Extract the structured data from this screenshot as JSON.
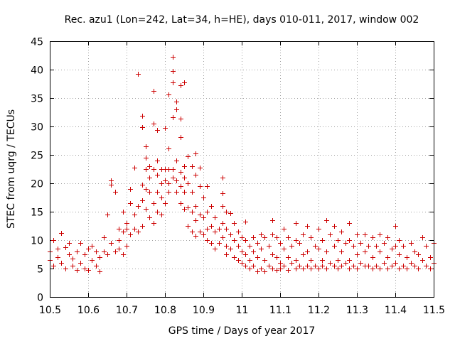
{
  "chart_data": {
    "type": "scatter",
    "title": "Rec. azu1 (Lon=242, Lat=34, h=HE), days 010-011, 2017, window 002",
    "xlabel": "GPS time / Days of year 2017",
    "ylabel": "STEC from uqrg / TECUs",
    "xlim": [
      10.5,
      11.5
    ],
    "ylim": [
      0,
      45
    ],
    "xticks": [
      "10.5",
      "10.6",
      "10.7",
      "10.8",
      "10.9",
      "11",
      "11.1",
      "11.2",
      "11.3",
      "11.4",
      "11.5"
    ],
    "yticks": [
      "0",
      "5",
      "10",
      "15",
      "20",
      "25",
      "30",
      "35",
      "40",
      "45"
    ],
    "marker": "+",
    "marker_color": "#cc0000",
    "grid": true,
    "series": [
      {
        "name": "STEC",
        "points": [
          [
            10.5,
            8.0
          ],
          [
            10.5,
            6.5
          ],
          [
            10.51,
            5.5
          ],
          [
            10.51,
            10.0
          ],
          [
            10.52,
            8.5
          ],
          [
            10.52,
            7.0
          ],
          [
            10.53,
            11.3
          ],
          [
            10.53,
            6.0
          ],
          [
            10.54,
            5.0
          ],
          [
            10.54,
            8.8
          ],
          [
            10.55,
            7.5
          ],
          [
            10.55,
            9.5
          ],
          [
            10.56,
            5.5
          ],
          [
            10.56,
            6.8
          ],
          [
            10.57,
            8.0
          ],
          [
            10.57,
            4.8
          ],
          [
            10.58,
            9.5
          ],
          [
            10.58,
            6.0
          ],
          [
            10.59,
            7.5
          ],
          [
            10.59,
            5.0
          ],
          [
            10.6,
            8.5
          ],
          [
            10.6,
            4.8
          ],
          [
            10.61,
            9.0
          ],
          [
            10.61,
            6.5
          ],
          [
            10.62,
            5.5
          ],
          [
            10.62,
            8.0
          ],
          [
            10.63,
            4.5
          ],
          [
            10.63,
            7.0
          ],
          [
            10.64,
            10.5
          ],
          [
            10.64,
            8.0
          ],
          [
            10.65,
            14.5
          ],
          [
            10.65,
            7.5
          ],
          [
            10.66,
            20.5
          ],
          [
            10.66,
            19.8
          ],
          [
            10.66,
            9.5
          ],
          [
            10.67,
            18.5
          ],
          [
            10.67,
            8.0
          ],
          [
            10.68,
            12.0
          ],
          [
            10.68,
            10.0
          ],
          [
            10.68,
            8.5
          ],
          [
            10.69,
            15.0
          ],
          [
            10.69,
            11.5
          ],
          [
            10.69,
            7.5
          ],
          [
            10.7,
            13.0
          ],
          [
            10.7,
            12.0
          ],
          [
            10.7,
            9.0
          ],
          [
            10.71,
            19.0
          ],
          [
            10.71,
            16.5
          ],
          [
            10.71,
            11.0
          ],
          [
            10.72,
            22.8
          ],
          [
            10.72,
            14.5
          ],
          [
            10.72,
            12.0
          ],
          [
            10.73,
            39.3
          ],
          [
            10.73,
            16.0
          ],
          [
            10.73,
            11.5
          ],
          [
            10.74,
            31.9
          ],
          [
            10.74,
            29.9
          ],
          [
            10.74,
            19.8
          ],
          [
            10.74,
            17.0
          ],
          [
            10.74,
            12.5
          ],
          [
            10.75,
            26.5
          ],
          [
            10.75,
            24.5
          ],
          [
            10.75,
            22.5
          ],
          [
            10.75,
            19.0
          ],
          [
            10.75,
            15.5
          ],
          [
            10.76,
            23.0
          ],
          [
            10.76,
            21.0
          ],
          [
            10.76,
            18.5
          ],
          [
            10.76,
            14.0
          ],
          [
            10.77,
            36.3
          ],
          [
            10.77,
            30.5
          ],
          [
            10.77,
            22.5
          ],
          [
            10.77,
            16.5
          ],
          [
            10.77,
            13.0
          ],
          [
            10.78,
            29.4
          ],
          [
            10.78,
            24.0
          ],
          [
            10.78,
            21.5
          ],
          [
            10.78,
            18.5
          ],
          [
            10.78,
            15.0
          ],
          [
            10.79,
            22.5
          ],
          [
            10.79,
            20.0
          ],
          [
            10.79,
            17.5
          ],
          [
            10.79,
            14.5
          ],
          [
            10.8,
            29.8
          ],
          [
            10.8,
            22.5
          ],
          [
            10.8,
            20.5
          ],
          [
            10.8,
            16.5
          ],
          [
            10.81,
            35.6
          ],
          [
            10.81,
            26.1
          ],
          [
            10.81,
            22.5
          ],
          [
            10.81,
            20.0
          ],
          [
            10.81,
            18.5
          ],
          [
            10.82,
            42.2
          ],
          [
            10.82,
            39.8
          ],
          [
            10.82,
            37.8
          ],
          [
            10.82,
            31.6
          ],
          [
            10.82,
            22.5
          ],
          [
            10.82,
            21.0
          ],
          [
            10.83,
            34.4
          ],
          [
            10.83,
            33.0
          ],
          [
            10.83,
            24.0
          ],
          [
            10.83,
            20.5
          ],
          [
            10.83,
            18.5
          ],
          [
            10.84,
            37.3
          ],
          [
            10.84,
            31.4
          ],
          [
            10.84,
            28.1
          ],
          [
            10.84,
            22.0
          ],
          [
            10.84,
            19.5
          ],
          [
            10.84,
            16.5
          ],
          [
            10.85,
            37.8
          ],
          [
            10.85,
            23.0
          ],
          [
            10.85,
            21.0
          ],
          [
            10.85,
            18.5
          ],
          [
            10.85,
            15.5
          ],
          [
            10.86,
            24.7
          ],
          [
            10.86,
            20.0
          ],
          [
            10.86,
            15.8
          ],
          [
            10.86,
            12.5
          ],
          [
            10.87,
            23.0
          ],
          [
            10.87,
            18.5
          ],
          [
            10.87,
            15.0
          ],
          [
            10.87,
            11.5
          ],
          [
            10.88,
            25.3
          ],
          [
            10.88,
            21.5
          ],
          [
            10.88,
            16.0
          ],
          [
            10.88,
            13.5
          ],
          [
            10.88,
            10.8
          ],
          [
            10.89,
            22.8
          ],
          [
            10.89,
            19.5
          ],
          [
            10.89,
            14.5
          ],
          [
            10.89,
            11.5
          ],
          [
            10.9,
            17.5
          ],
          [
            10.9,
            14.0
          ],
          [
            10.9,
            11.0
          ],
          [
            10.91,
            19.5
          ],
          [
            10.91,
            15.0
          ],
          [
            10.91,
            12.0
          ],
          [
            10.91,
            10.0
          ],
          [
            10.92,
            16.0
          ],
          [
            10.92,
            12.5
          ],
          [
            10.92,
            9.5
          ],
          [
            10.93,
            14.0
          ],
          [
            10.93,
            11.5
          ],
          [
            10.93,
            8.5
          ],
          [
            10.94,
            12.0
          ],
          [
            10.94,
            9.5
          ],
          [
            10.95,
            21.0
          ],
          [
            10.95,
            18.2
          ],
          [
            10.95,
            16.0
          ],
          [
            10.95,
            13.0
          ],
          [
            10.95,
            10.5
          ],
          [
            10.96,
            15.0
          ],
          [
            10.96,
            12.0
          ],
          [
            10.96,
            9.0
          ],
          [
            10.96,
            7.5
          ],
          [
            10.97,
            14.8
          ],
          [
            10.97,
            11.0
          ],
          [
            10.97,
            8.5
          ],
          [
            10.98,
            13.0
          ],
          [
            10.98,
            10.0
          ],
          [
            10.98,
            7.0
          ],
          [
            10.99,
            11.5
          ],
          [
            10.99,
            9.0
          ],
          [
            10.99,
            6.5
          ],
          [
            11.0,
            10.5
          ],
          [
            11.0,
            8.0
          ],
          [
            11.0,
            6.0
          ],
          [
            11.01,
            13.3
          ],
          [
            11.01,
            10.0
          ],
          [
            11.01,
            7.5
          ],
          [
            11.01,
            5.5
          ],
          [
            11.02,
            9.0
          ],
          [
            11.02,
            6.5
          ],
          [
            11.02,
            5.0
          ],
          [
            11.03,
            10.5
          ],
          [
            11.03,
            8.0
          ],
          [
            11.03,
            5.5
          ],
          [
            11.04,
            9.5
          ],
          [
            11.04,
            7.0
          ],
          [
            11.04,
            4.5
          ],
          [
            11.05,
            11.0
          ],
          [
            11.05,
            8.5
          ],
          [
            11.05,
            5.0
          ],
          [
            11.06,
            10.5
          ],
          [
            11.06,
            6.5
          ],
          [
            11.06,
            4.5
          ],
          [
            11.07,
            9.0
          ],
          [
            11.07,
            5.5
          ],
          [
            11.08,
            13.5
          ],
          [
            11.08,
            11.0
          ],
          [
            11.08,
            7.5
          ],
          [
            11.08,
            5.0
          ],
          [
            11.09,
            10.5
          ],
          [
            11.09,
            7.0
          ],
          [
            11.09,
            4.8
          ],
          [
            11.1,
            9.5
          ],
          [
            11.1,
            6.0
          ],
          [
            11.1,
            5.0
          ],
          [
            11.11,
            12.0
          ],
          [
            11.11,
            8.5
          ],
          [
            11.11,
            5.5
          ],
          [
            11.12,
            10.5
          ],
          [
            11.12,
            7.0
          ],
          [
            11.12,
            4.8
          ],
          [
            11.13,
            9.0
          ],
          [
            11.13,
            6.0
          ],
          [
            11.14,
            13.0
          ],
          [
            11.14,
            10.0
          ],
          [
            11.14,
            6.5
          ],
          [
            11.14,
            5.0
          ],
          [
            11.15,
            9.5
          ],
          [
            11.15,
            5.5
          ],
          [
            11.16,
            11.0
          ],
          [
            11.16,
            7.5
          ],
          [
            11.16,
            5.0
          ],
          [
            11.17,
            12.5
          ],
          [
            11.17,
            8.0
          ],
          [
            11.17,
            5.5
          ],
          [
            11.18,
            10.5
          ],
          [
            11.18,
            6.5
          ],
          [
            11.18,
            5.0
          ],
          [
            11.19,
            9.0
          ],
          [
            11.19,
            5.5
          ],
          [
            11.2,
            12.0
          ],
          [
            11.2,
            8.5
          ],
          [
            11.2,
            5.0
          ],
          [
            11.21,
            10.0
          ],
          [
            11.21,
            6.5
          ],
          [
            11.21,
            5.5
          ],
          [
            11.22,
            13.5
          ],
          [
            11.22,
            8.0
          ],
          [
            11.22,
            5.0
          ],
          [
            11.23,
            11.0
          ],
          [
            11.23,
            6.0
          ],
          [
            11.24,
            12.5
          ],
          [
            11.24,
            9.0
          ],
          [
            11.24,
            5.5
          ],
          [
            11.25,
            10.0
          ],
          [
            11.25,
            6.5
          ],
          [
            11.25,
            5.0
          ],
          [
            11.26,
            11.5
          ],
          [
            11.26,
            8.0
          ],
          [
            11.26,
            5.5
          ],
          [
            11.27,
            9.5
          ],
          [
            11.27,
            6.0
          ],
          [
            11.28,
            13.0
          ],
          [
            11.28,
            10.0
          ],
          [
            11.28,
            6.5
          ],
          [
            11.28,
            5.0
          ],
          [
            11.29,
            9.0
          ],
          [
            11.29,
            5.5
          ],
          [
            11.3,
            11.0
          ],
          [
            11.3,
            7.5
          ],
          [
            11.3,
            5.0
          ],
          [
            11.31,
            9.5
          ],
          [
            11.31,
            6.0
          ],
          [
            11.32,
            11.0
          ],
          [
            11.32,
            8.0
          ],
          [
            11.32,
            5.5
          ],
          [
            11.33,
            9.0
          ],
          [
            11.33,
            5.5
          ],
          [
            11.34,
            10.5
          ],
          [
            11.34,
            7.0
          ],
          [
            11.34,
            5.0
          ],
          [
            11.35,
            9.0
          ],
          [
            11.35,
            5.5
          ],
          [
            11.36,
            11.0
          ],
          [
            11.36,
            8.0
          ],
          [
            11.36,
            5.0
          ],
          [
            11.37,
            9.5
          ],
          [
            11.37,
            6.0
          ],
          [
            11.38,
            10.5
          ],
          [
            11.38,
            7.0
          ],
          [
            11.38,
            5.0
          ],
          [
            11.39,
            8.5
          ],
          [
            11.39,
            5.5
          ],
          [
            11.4,
            12.5
          ],
          [
            11.4,
            9.0
          ],
          [
            11.4,
            6.0
          ],
          [
            11.41,
            10.0
          ],
          [
            11.41,
            7.5
          ],
          [
            11.41,
            5.0
          ],
          [
            11.42,
            9.0
          ],
          [
            11.42,
            5.5
          ],
          [
            11.43,
            7.0
          ],
          [
            11.43,
            5.0
          ],
          [
            11.44,
            9.5
          ],
          [
            11.44,
            6.0
          ],
          [
            11.45,
            8.0
          ],
          [
            11.45,
            5.5
          ],
          [
            11.46,
            7.5
          ],
          [
            11.46,
            5.0
          ],
          [
            11.47,
            10.5
          ],
          [
            11.47,
            6.5
          ],
          [
            11.48,
            9.0
          ],
          [
            11.48,
            5.5
          ],
          [
            11.49,
            7.0
          ],
          [
            11.49,
            5.0
          ],
          [
            11.5,
            9.5
          ],
          [
            11.5,
            6.0
          ]
        ]
      }
    ]
  }
}
